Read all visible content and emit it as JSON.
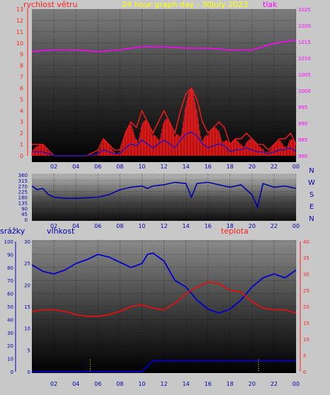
{
  "header": {
    "wind_label": "rychlost větru",
    "title": "24 hour graph day : 30July 2023",
    "pressure_label": "tlak"
  },
  "bottom_header": {
    "rain_label": "srážky",
    "humidity_label": "vlhkost",
    "temp_label": "teplota"
  },
  "colors": {
    "wind": "#ff1a1a",
    "gust_dark": "#1010d0",
    "pressure": "#ff00ff",
    "direction": "#0000aa",
    "humidity": "#0000cc",
    "temperature": "#e01010",
    "rain": "#0000cc",
    "title": "#ffff00",
    "axis_left": "#ff2020",
    "axis_pressure": "#ff00ff",
    "axis_blue": "#0000aa"
  },
  "chart_data": [
    {
      "type": "line",
      "title": "24 hour graph day : 30July 2023",
      "x_ticks": [
        "02",
        "04",
        "06",
        "08",
        "10",
        "12",
        "14",
        "16",
        "18",
        "20",
        "22",
        "00"
      ],
      "x_range": [
        0,
        24
      ],
      "y_left": {
        "label": "rychlost větru",
        "range": [
          0,
          13
        ],
        "ticks": [
          0,
          1,
          2,
          3,
          4,
          5,
          6,
          7,
          8,
          9,
          10,
          11,
          12,
          13
        ]
      },
      "y_right": {
        "label": "tlak",
        "range": [
          980,
          1025
        ],
        "ticks": [
          980,
          985,
          990,
          995,
          1000,
          1005,
          1010,
          1015,
          1020,
          1025
        ]
      },
      "series": [
        {
          "name": "rychlost větru",
          "axis": "left",
          "x": [
            0,
            0.5,
            1,
            1.5,
            2,
            3,
            4,
            5,
            6,
            6.5,
            7,
            7.5,
            8,
            8.5,
            9,
            9.5,
            10,
            10.5,
            11,
            11.5,
            12,
            12.5,
            13,
            13.5,
            14,
            14.5,
            15,
            15.5,
            16,
            16.5,
            17,
            17.5,
            18,
            18.5,
            19,
            19.5,
            20,
            20.5,
            21,
            21.5,
            22,
            22.5,
            23,
            23.5,
            24
          ],
          "values": [
            1,
            1,
            1,
            0.5,
            0,
            0,
            0,
            0,
            0.5,
            1.5,
            1,
            0.5,
            0.5,
            2,
            3,
            2.5,
            4,
            3,
            2,
            3,
            4,
            3,
            2,
            4,
            5.5,
            6,
            5,
            3,
            2,
            2.5,
            3,
            2.5,
            1,
            1.5,
            1.5,
            2,
            1.5,
            1,
            1,
            0.5,
            1,
            1.5,
            1.5,
            2,
            1
          ]
        },
        {
          "name": "tlak",
          "axis": "right",
          "x": [
            0,
            2,
            4,
            6,
            8,
            10,
            12,
            14,
            16,
            18,
            20,
            22,
            24
          ],
          "values": [
            1012,
            1012.5,
            1012.5,
            1012,
            1012.5,
            1013.5,
            1013.5,
            1013,
            1013,
            1012.5,
            1012.5,
            1014.5,
            1015.5
          ]
        }
      ]
    },
    {
      "type": "line",
      "x_ticks": [
        "02",
        "04",
        "06",
        "08",
        "10",
        "12",
        "14",
        "16",
        "18",
        "20",
        "22",
        "00"
      ],
      "x_range": [
        0,
        24
      ],
      "y_left": {
        "range": [
          0,
          360
        ],
        "ticks": [
          0,
          45,
          90,
          135,
          180,
          225,
          270,
          315,
          360
        ]
      },
      "y_right_labels": [
        "N",
        "W",
        "S",
        "E",
        "N"
      ],
      "series": [
        {
          "name": "direction",
          "x": [
            0,
            0.5,
            1,
            1.5,
            2,
            2.5,
            3,
            4,
            5,
            6,
            7,
            8,
            9,
            10,
            10.5,
            11,
            12,
            13,
            14,
            14.5,
            15,
            16,
            17,
            18,
            19,
            20,
            20.5,
            21,
            22,
            23,
            24
          ],
          "values": [
            270,
            240,
            250,
            200,
            180,
            175,
            170,
            170,
            175,
            180,
            200,
            240,
            260,
            270,
            250,
            270,
            280,
            300,
            290,
            180,
            290,
            300,
            280,
            260,
            280,
            200,
            100,
            290,
            260,
            270,
            250
          ]
        }
      ]
    },
    {
      "type": "line",
      "x_ticks": [
        "02",
        "04",
        "06",
        "08",
        "10",
        "12",
        "14",
        "16",
        "18",
        "20",
        "22",
        "00"
      ],
      "x_range": [
        0,
        24
      ],
      "y_left_outer": {
        "label": "srážky",
        "range": [
          0,
          100
        ],
        "ticks": [
          0,
          10,
          20,
          30,
          40,
          50,
          60,
          70,
          80,
          90,
          100
        ]
      },
      "y_left_inner": {
        "label": "vlhkost",
        "range": [
          0,
          30
        ],
        "ticks": [
          0,
          5,
          10,
          15,
          20,
          25,
          30
        ]
      },
      "y_right": {
        "label": "teplota",
        "range": [
          0,
          40
        ],
        "ticks": [
          0,
          5,
          10,
          15,
          20,
          25,
          30,
          35,
          40
        ]
      },
      "series": [
        {
          "name": "vlhkost",
          "axis": "left_outer",
          "x": [
            0,
            1,
            2,
            3,
            4,
            5,
            6,
            7,
            8,
            9,
            10,
            10.5,
            11,
            12,
            13,
            14,
            15,
            16,
            17,
            18,
            19,
            20,
            21,
            22,
            23,
            24
          ],
          "values": [
            82,
            77,
            75,
            78,
            83,
            86,
            90,
            88,
            84,
            80,
            83,
            90,
            91,
            85,
            70,
            65,
            55,
            48,
            45,
            48,
            55,
            65,
            72,
            75,
            72,
            78
          ]
        },
        {
          "name": "teplota",
          "axis": "right",
          "x": [
            0,
            1,
            2,
            3,
            4,
            5,
            6,
            7,
            8,
            9,
            10,
            11,
            12,
            13,
            14,
            15,
            16,
            17,
            18,
            19,
            20,
            21,
            22,
            23,
            24
          ],
          "values": [
            18.5,
            19,
            19,
            18.5,
            17.5,
            17,
            17,
            17.5,
            18.5,
            20,
            20.5,
            19.5,
            19,
            21,
            24,
            26,
            27.5,
            27,
            25,
            24.5,
            21.5,
            19.5,
            19,
            19,
            18
          ]
        },
        {
          "name": "srážky",
          "axis": "left_inner",
          "x": [
            0,
            10,
            11,
            24
          ],
          "values": [
            0,
            0,
            2.5,
            2.5
          ]
        }
      ]
    }
  ]
}
